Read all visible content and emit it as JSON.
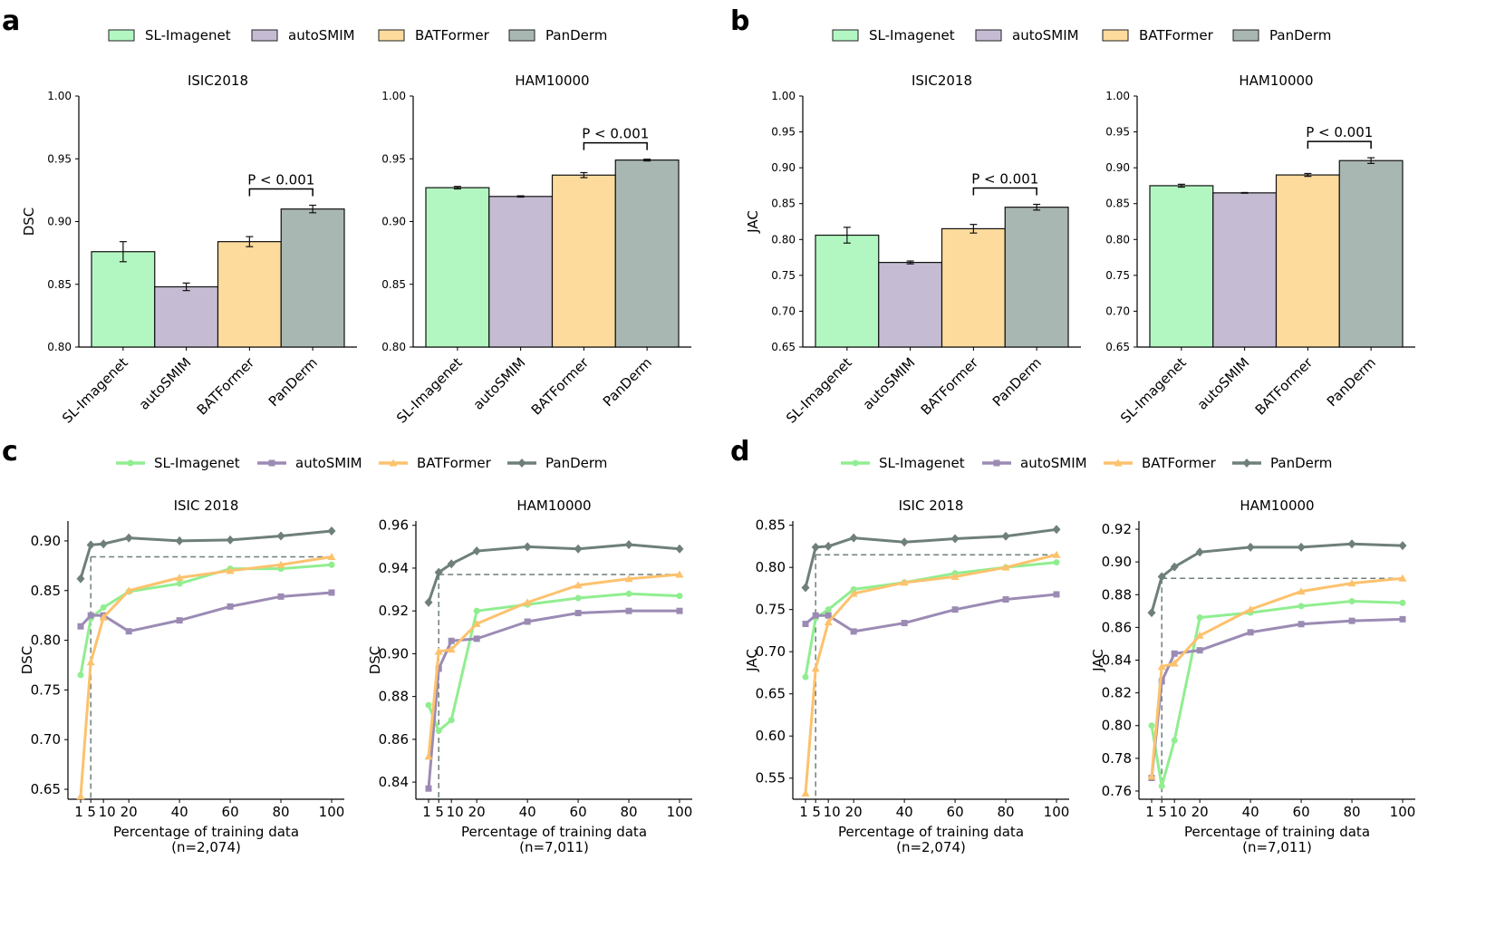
{
  "colors": {
    "SL-Imagenet": "#b2f7c2",
    "autoSMIM": "#c5bcd4",
    "BATFormer": "#fddb9d",
    "PanDerm": "#a9b7b3",
    "line_SL-Imagenet": "#90ee90",
    "line_autoSMIM": "#9b8bb4",
    "line_BATFormer": "#fcc26d",
    "line_PanDerm": "#6f7f7b"
  },
  "panels": [
    {
      "letter": "a",
      "legend": [
        "SL-Imagenet",
        "autoSMIM",
        "BATFormer",
        "PanDerm"
      ]
    },
    {
      "letter": "b",
      "legend": [
        "SL-Imagenet",
        "autoSMIM",
        "BATFormer",
        "PanDerm"
      ]
    },
    {
      "letter": "c",
      "legend": [
        "SL-Imagenet",
        "autoSMIM",
        "BATFormer",
        "PanDerm"
      ]
    },
    {
      "letter": "d",
      "legend": [
        "SL-Imagenet",
        "autoSMIM",
        "BATFormer",
        "PanDerm"
      ]
    }
  ],
  "chart_data": [
    {
      "type": "bar",
      "panel": "a",
      "title": "ISIC2018",
      "ylabel": "DSC",
      "xlabel": "",
      "categories": [
        "SL-Imagenet",
        "autoSMIM",
        "BATFormer",
        "PanDerm"
      ],
      "values": [
        0.876,
        0.848,
        0.884,
        0.91
      ],
      "errors": [
        0.008,
        0.003,
        0.004,
        0.003
      ],
      "ylim": [
        0.8,
        1.0
      ],
      "yticks": [
        "0.80",
        "0.85",
        "0.90",
        "0.95",
        "1.00"
      ],
      "annotation": "P < 0.001"
    },
    {
      "type": "bar",
      "panel": "a",
      "title": "HAM10000",
      "ylabel": "",
      "xlabel": "",
      "categories": [
        "SL-Imagenet",
        "autoSMIM",
        "BATFormer",
        "PanDerm"
      ],
      "values": [
        0.927,
        0.92,
        0.937,
        0.949
      ],
      "errors": [
        0.001,
        0.0005,
        0.002,
        0.0007
      ],
      "ylim": [
        0.8,
        1.0
      ],
      "yticks": [
        "0.80",
        "0.85",
        "0.90",
        "0.95",
        "1.00"
      ],
      "annotation": "P < 0.001"
    },
    {
      "type": "bar",
      "panel": "b",
      "title": "ISIC2018",
      "ylabel": "JAC",
      "xlabel": "",
      "categories": [
        "SL-Imagenet",
        "autoSMIM",
        "BATFormer",
        "PanDerm"
      ],
      "values": [
        0.806,
        0.768,
        0.815,
        0.845
      ],
      "errors": [
        0.011,
        0.002,
        0.006,
        0.004
      ],
      "ylim": [
        0.65,
        1.0
      ],
      "yticks": [
        "0.65",
        "0.70",
        "0.75",
        "0.80",
        "0.85",
        "0.90",
        "0.95",
        "1.00"
      ],
      "annotation": "P < 0.001"
    },
    {
      "type": "bar",
      "panel": "b",
      "title": "HAM10000",
      "ylabel": "",
      "xlabel": "",
      "categories": [
        "SL-Imagenet",
        "autoSMIM",
        "BATFormer",
        "PanDerm"
      ],
      "values": [
        0.875,
        0.865,
        0.89,
        0.91
      ],
      "errors": [
        0.002,
        0.0005,
        0.002,
        0.004
      ],
      "ylim": [
        0.65,
        1.0
      ],
      "yticks": [
        "0.65",
        "0.70",
        "0.75",
        "0.80",
        "0.85",
        "0.90",
        "0.95",
        "1.00"
      ],
      "annotation": "P < 0.001"
    },
    {
      "type": "line",
      "panel": "c",
      "title": "ISIC 2018",
      "ylabel": "DSC",
      "xlabel": "Percentage of training data",
      "xlabel2": "(n=2,074)",
      "x": [
        1,
        5,
        10,
        20,
        40,
        60,
        80,
        100
      ],
      "xticks": [
        "1",
        "5",
        "10",
        "20",
        "40",
        "60",
        "80",
        "100"
      ],
      "ylim": [
        0.64,
        0.92
      ],
      "yticks": [
        "0.65",
        "0.70",
        "0.75",
        "0.80",
        "0.85",
        "0.90"
      ],
      "ytick_values": [
        0.65,
        0.7,
        0.75,
        0.8,
        0.85,
        0.9
      ],
      "ref_y": 0.884,
      "series": [
        {
          "name": "SL-Imagenet",
          "values": [
            0.765,
            0.822,
            0.833,
            0.849,
            0.857,
            0.872,
            0.872,
            0.876
          ]
        },
        {
          "name": "autoSMIM",
          "values": [
            0.814,
            0.825,
            0.825,
            0.809,
            0.82,
            0.834,
            0.844,
            0.848
          ]
        },
        {
          "name": "BATFormer",
          "values": [
            0.643,
            0.778,
            0.823,
            0.85,
            0.863,
            0.87,
            0.876,
            0.884
          ]
        },
        {
          "name": "PanDerm",
          "values": [
            0.862,
            0.896,
            0.897,
            0.903,
            0.9,
            0.901,
            0.905,
            0.91
          ]
        }
      ]
    },
    {
      "type": "line",
      "panel": "c",
      "title": "HAM10000",
      "ylabel": "DSC",
      "xlabel": "Percentage of training data",
      "xlabel2": "(n=7,011)",
      "x": [
        1,
        5,
        10,
        20,
        40,
        60,
        80,
        100
      ],
      "xticks": [
        "1",
        "5",
        "10",
        "20",
        "40",
        "60",
        "80",
        "100"
      ],
      "ylim": [
        0.832,
        0.962
      ],
      "yticks": [
        "0.84",
        "0.86",
        "0.88",
        "0.90",
        "0.92",
        "0.94",
        "0.96"
      ],
      "ytick_values": [
        0.84,
        0.86,
        0.88,
        0.9,
        0.92,
        0.94,
        0.96
      ],
      "ref_y": 0.937,
      "series": [
        {
          "name": "SL-Imagenet",
          "values": [
            0.876,
            0.864,
            0.869,
            0.92,
            0.923,
            0.926,
            0.928,
            0.927
          ]
        },
        {
          "name": "autoSMIM",
          "values": [
            0.837,
            0.893,
            0.906,
            0.907,
            0.915,
            0.919,
            0.92,
            0.92
          ]
        },
        {
          "name": "BATFormer",
          "values": [
            0.852,
            0.901,
            0.902,
            0.914,
            0.924,
            0.932,
            0.935,
            0.937
          ]
        },
        {
          "name": "PanDerm",
          "values": [
            0.924,
            0.938,
            0.942,
            0.948,
            0.95,
            0.949,
            0.951,
            0.949
          ]
        }
      ]
    },
    {
      "type": "line",
      "panel": "d",
      "title": "ISIC 2018",
      "ylabel": "JAC",
      "xlabel": "Percentage of training data",
      "xlabel2": "(n=2,074)",
      "x": [
        1,
        5,
        10,
        20,
        40,
        60,
        80,
        100
      ],
      "xticks": [
        "1",
        "5",
        "10",
        "20",
        "40",
        "60",
        "80",
        "100"
      ],
      "ylim": [
        0.525,
        0.855
      ],
      "yticks": [
        "0.55",
        "0.60",
        "0.65",
        "0.70",
        "0.75",
        "0.80",
        "0.85"
      ],
      "ytick_values": [
        0.55,
        0.6,
        0.65,
        0.7,
        0.75,
        0.8,
        0.85
      ],
      "ref_y": 0.815,
      "series": [
        {
          "name": "SL-Imagenet",
          "values": [
            0.67,
            0.74,
            0.75,
            0.774,
            0.782,
            0.793,
            0.8,
            0.806
          ]
        },
        {
          "name": "autoSMIM",
          "values": [
            0.733,
            0.743,
            0.743,
            0.724,
            0.734,
            0.75,
            0.762,
            0.768
          ]
        },
        {
          "name": "BATFormer",
          "values": [
            0.532,
            0.68,
            0.735,
            0.769,
            0.782,
            0.789,
            0.8,
            0.815
          ]
        },
        {
          "name": "PanDerm",
          "values": [
            0.776,
            0.824,
            0.825,
            0.835,
            0.83,
            0.834,
            0.837,
            0.845
          ]
        }
      ]
    },
    {
      "type": "line",
      "panel": "d",
      "title": "HAM10000",
      "ylabel": "JAC",
      "xlabel": "Percentage of training data",
      "xlabel2": "(n=7,011)",
      "x": [
        1,
        5,
        10,
        20,
        40,
        60,
        80,
        100
      ],
      "xticks": [
        "1",
        "5",
        "10",
        "20",
        "40",
        "60",
        "80",
        "100"
      ],
      "ylim": [
        0.755,
        0.925
      ],
      "yticks": [
        "0.76",
        "0.78",
        "0.80",
        "0.82",
        "0.84",
        "0.86",
        "0.88",
        "0.90",
        "0.92"
      ],
      "ytick_values": [
        0.76,
        0.78,
        0.8,
        0.82,
        0.84,
        0.86,
        0.88,
        0.9,
        0.92
      ],
      "ref_y": 0.89,
      "series": [
        {
          "name": "SL-Imagenet",
          "values": [
            0.8,
            0.763,
            0.791,
            0.866,
            0.869,
            0.873,
            0.876,
            0.875
          ]
        },
        {
          "name": "autoSMIM",
          "values": [
            0.768,
            0.827,
            0.844,
            0.846,
            0.857,
            0.862,
            0.864,
            0.865
          ]
        },
        {
          "name": "BATFormer",
          "values": [
            0.769,
            0.836,
            0.838,
            0.855,
            0.871,
            0.882,
            0.887,
            0.89
          ]
        },
        {
          "name": "PanDerm",
          "values": [
            0.869,
            0.891,
            0.897,
            0.906,
            0.909,
            0.909,
            0.911,
            0.91
          ]
        }
      ]
    }
  ]
}
